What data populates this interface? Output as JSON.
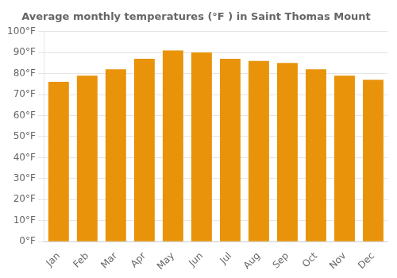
{
  "chart_data": {
    "type": "bar",
    "title": "Average monthly temperatures (°F ) in Saint Thomas Mount",
    "categories": [
      "Jan",
      "Feb",
      "Mar",
      "Apr",
      "May",
      "Jun",
      "Jul",
      "Aug",
      "Sep",
      "Oct",
      "Nov",
      "Dec"
    ],
    "values": [
      76,
      79,
      82,
      87,
      91,
      90,
      87,
      86,
      85,
      82,
      79,
      77
    ],
    "color": "#E8930A",
    "ylim": [
      0,
      100
    ],
    "yticks": [
      {
        "value": 0,
        "label": "0°F"
      },
      {
        "value": 10,
        "label": "10°F"
      },
      {
        "value": 20,
        "label": "20°F"
      },
      {
        "value": 30,
        "label": "30°F"
      },
      {
        "value": 40,
        "label": "40°F"
      },
      {
        "value": 50,
        "label": "50°F"
      },
      {
        "value": 60,
        "label": "60°F"
      },
      {
        "value": 70,
        "label": "70°F"
      },
      {
        "value": 80,
        "label": "80°F"
      },
      {
        "value": 90,
        "label": "90°F"
      },
      {
        "value": 100,
        "label": "100°F"
      }
    ],
    "grid": true
  }
}
